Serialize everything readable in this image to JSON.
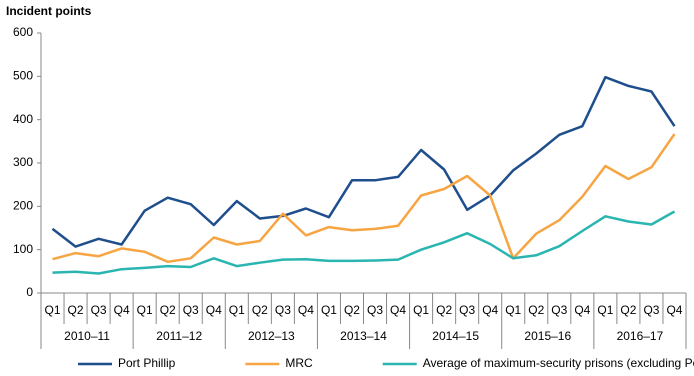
{
  "chart_data": {
    "type": "line",
    "y_axis_label": "Incident points",
    "categories": [
      "Q1",
      "Q2",
      "Q3",
      "Q4",
      "Q1",
      "Q2",
      "Q3",
      "Q4",
      "Q1",
      "Q2",
      "Q3",
      "Q4",
      "Q1",
      "Q2",
      "Q3",
      "Q4",
      "Q1",
      "Q2",
      "Q3",
      "Q4",
      "Q1",
      "Q2",
      "Q3",
      "Q4",
      "Q1",
      "Q2",
      "Q3",
      "Q4"
    ],
    "category_groups": [
      "2010–11",
      "2011–12",
      "2012–13",
      "2013–14",
      "2014–15",
      "2015–16",
      "2016–17"
    ],
    "series": [
      {
        "name": "Port Phillip",
        "color": "#1f4e8c",
        "values": [
          148,
          107,
          125,
          112,
          190,
          220,
          205,
          157,
          212,
          172,
          178,
          195,
          175,
          260,
          260,
          268,
          330,
          285,
          192,
          225,
          283,
          322,
          365,
          385,
          498,
          478,
          465,
          385
        ]
      },
      {
        "name": "MRC",
        "color": "#f7a443",
        "values": [
          78,
          92,
          85,
          103,
          95,
          72,
          80,
          128,
          112,
          120,
          183,
          133,
          152,
          145,
          148,
          155,
          225,
          240,
          270,
          225,
          80,
          137,
          168,
          222,
          293,
          263,
          290,
          367
        ]
      },
      {
        "name": "Average of maximum-security prisons (excluding Port Phillip)",
        "color": "#2ab5b0",
        "values": [
          47,
          49,
          45,
          55,
          58,
          62,
          60,
          80,
          62,
          70,
          77,
          78,
          74,
          74,
          75,
          77,
          100,
          117,
          138,
          113,
          80,
          87,
          108,
          143,
          177,
          165,
          158,
          188
        ]
      }
    ],
    "ylim": [
      0,
      600
    ],
    "yticks": [
      0,
      100,
      200,
      300,
      400,
      500,
      600
    ],
    "grid": false
  }
}
